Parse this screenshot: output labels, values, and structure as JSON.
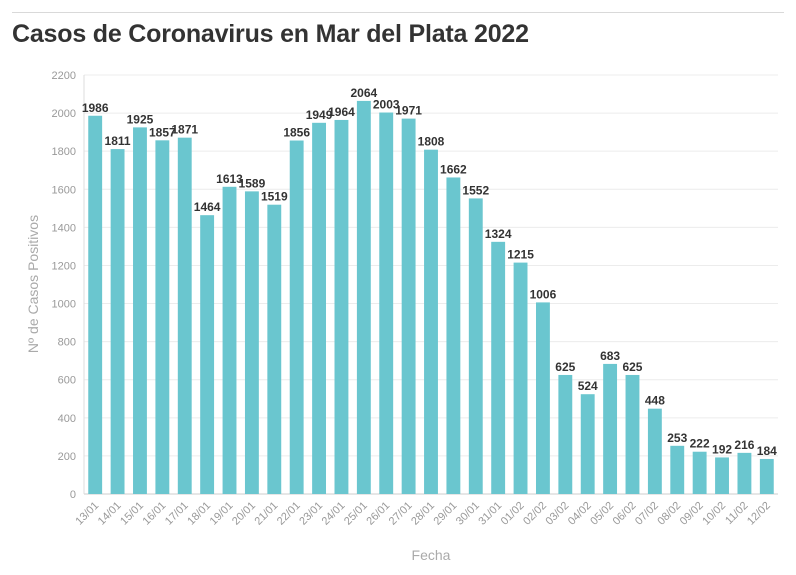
{
  "title": "Casos de Coronavirus en Mar del Plata 2022",
  "chart_data": {
    "type": "bar",
    "title": "Casos de Coronavirus en Mar del Plata 2022",
    "xlabel": "Fecha",
    "ylabel": "Nº de Casos Positivos",
    "ylim": [
      0,
      2200
    ],
    "yticks": [
      0,
      200,
      400,
      600,
      800,
      1000,
      1200,
      1400,
      1600,
      1800,
      2000,
      2200
    ],
    "grid": true,
    "bar_color": "#6ac6cf",
    "categories": [
      "13/01",
      "14/01",
      "15/01",
      "16/01",
      "17/01",
      "18/01",
      "19/01",
      "20/01",
      "21/01",
      "22/01",
      "23/01",
      "24/01",
      "25/01",
      "26/01",
      "27/01",
      "28/01",
      "29/01",
      "30/01",
      "31/01",
      "01/02",
      "02/02",
      "03/02",
      "04/02",
      "05/02",
      "06/02",
      "07/02",
      "08/02",
      "09/02",
      "10/02",
      "11/02",
      "12/02"
    ],
    "values": [
      1986,
      1811,
      1925,
      1857,
      1871,
      1464,
      1613,
      1589,
      1519,
      1856,
      1949,
      1964,
      2064,
      2003,
      1971,
      1808,
      1662,
      1552,
      1324,
      1215,
      1006,
      625,
      524,
      683,
      625,
      448,
      253,
      222,
      192,
      216,
      184
    ]
  }
}
